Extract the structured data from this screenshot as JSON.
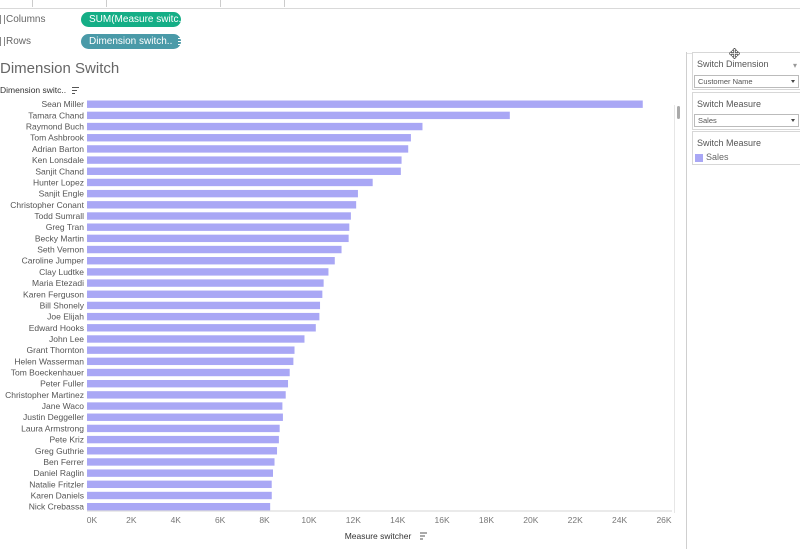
{
  "shelves": {
    "columns_label": "Columns",
    "columns_pill": "SUM(Measure switc..",
    "rows_label": "Rows",
    "rows_pill": "Dimension switch.."
  },
  "sheet": {
    "title": "Dimension Switch",
    "dimension_header": "Dimension switc.."
  },
  "controls": {
    "switch_dimension": {
      "title": "Switch Dimension",
      "value": "Customer Name"
    },
    "switch_measure": {
      "title": "Switch Measure",
      "value": "Sales"
    },
    "legend": {
      "title": "Switch Measure",
      "item": "Sales",
      "color": "#a9a7f5"
    }
  },
  "chart_data": {
    "type": "bar",
    "orientation": "horizontal",
    "title": "Dimension Switch",
    "xlabel": "Measure switcher",
    "ylabel": "Dimension switc..",
    "xlim": [
      0,
      26000
    ],
    "x_ticks": [
      "0K",
      "2K",
      "4K",
      "6K",
      "8K",
      "10K",
      "12K",
      "14K",
      "16K",
      "18K",
      "20K",
      "22K",
      "24K",
      "26K"
    ],
    "bar_color": "#a9a7f5",
    "categories": [
      "Sean Miller",
      "Tamara Chand",
      "Raymond Buch",
      "Tom Ashbrook",
      "Adrian Barton",
      "Ken Lonsdale",
      "Sanjit Chand",
      "Hunter Lopez",
      "Sanjit Engle",
      "Christopher Conant",
      "Todd Sumrall",
      "Greg Tran",
      "Becky Martin",
      "Seth Vernon",
      "Caroline Jumper",
      "Clay Ludtke",
      "Maria Etezadi",
      "Karen Ferguson",
      "Bill Shonely",
      "Joe Elijah",
      "Edward Hooks",
      "John Lee",
      "Grant Thornton",
      "Helen Wasserman",
      "Tom Boeckenhauer",
      "Peter Fuller",
      "Christopher Martinez",
      "Jane Waco",
      "Justin Deggeller",
      "Laura Armstrong",
      "Pete Kriz",
      "Greg Guthrie",
      "Ben Ferrer",
      "Daniel Raglin",
      "Natalie Fritzler",
      "Karen Daniels",
      "Nick Crebassa"
    ],
    "values": [
      25043,
      19052,
      15117,
      14596,
      14474,
      14175,
      14142,
      12873,
      12209,
      12129,
      11891,
      11820,
      11790,
      11470,
      11165,
      10880,
      10663,
      10605,
      10501,
      10471,
      10310,
      9800,
      9351,
      9300,
      9134,
      9059,
      8954,
      8805,
      8828,
      8682,
      8647,
      8563,
      8450,
      8381,
      8323,
      8325,
      8254
    ]
  }
}
